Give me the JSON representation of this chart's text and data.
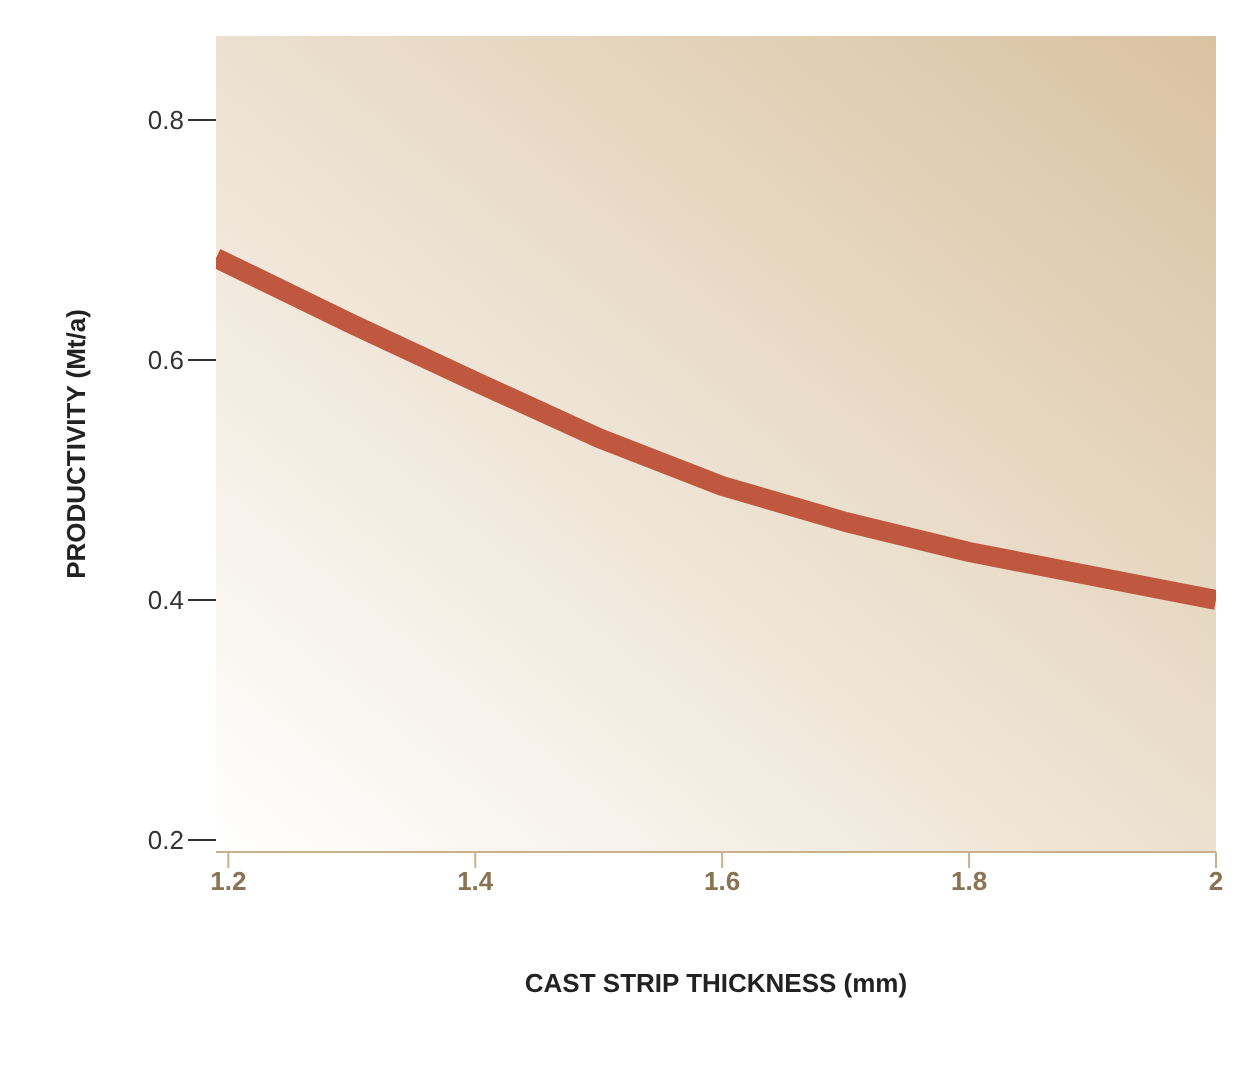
{
  "chart_data": {
    "type": "line",
    "xlabel": "CAST STRIP THICKNESS (mm)",
    "ylabel": "PRODUCTIVITY (Mt/a)",
    "x": [
      1.19,
      1.2,
      1.3,
      1.4,
      1.5,
      1.6,
      1.7,
      1.8,
      1.9,
      2.0
    ],
    "series": [
      {
        "color": "#c0583f",
        "values": [
          0.685,
          0.68,
          0.63,
          0.582,
          0.535,
          0.495,
          0.465,
          0.44,
          0.42,
          0.4
        ]
      }
    ],
    "xlim": [
      1.19,
      2.0
    ],
    "ylim": [
      0.19,
      0.87
    ],
    "xticks": [
      1.2,
      1.4,
      1.6,
      1.8,
      2
    ],
    "yticks": [
      0.2,
      0.4,
      0.6,
      0.8
    ],
    "marker": "none",
    "line_style": "solid"
  }
}
